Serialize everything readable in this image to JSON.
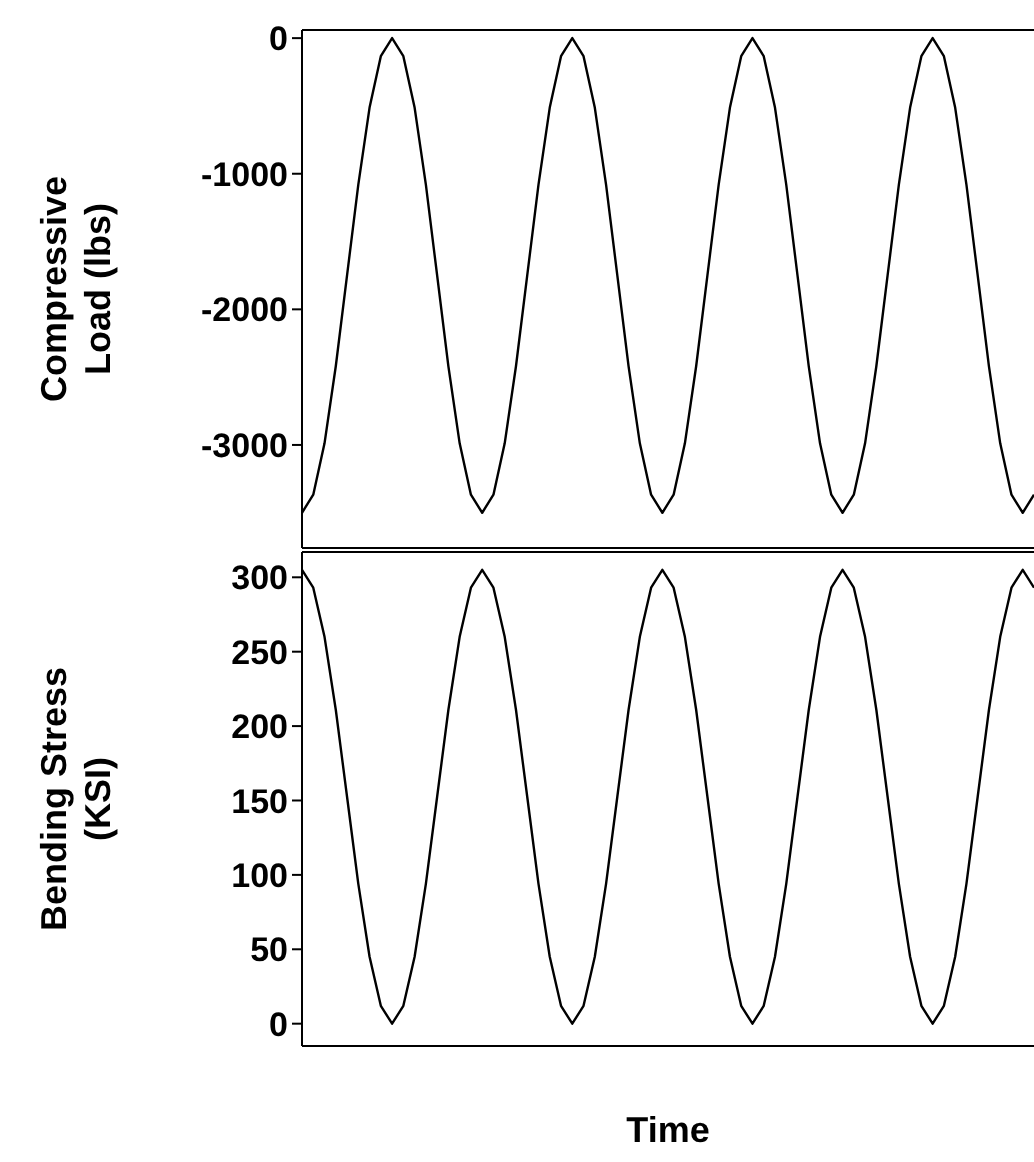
{
  "chart_data": [
    {
      "type": "line",
      "ylabel": "Compressive Load (lbs)",
      "tick_labels": "y",
      "grid": false,
      "legend": false,
      "marker": "none",
      "line_style": "solid",
      "ylim": [
        -3760,
        60
      ],
      "yticks": [
        0,
        -1000,
        -2000,
        -3000
      ],
      "categories": [
        null,
        null,
        null,
        null,
        null,
        null,
        null,
        null,
        null,
        null,
        null,
        null,
        null,
        null,
        null,
        null,
        null,
        null,
        null,
        null,
        null,
        null,
        null,
        null,
        null,
        null,
        null,
        null,
        null,
        null,
        null,
        null,
        null,
        null,
        null,
        null,
        null,
        null,
        null,
        null,
        null,
        null,
        null,
        null,
        null,
        null,
        null,
        null,
        null,
        null,
        null,
        null,
        null,
        null,
        null,
        null,
        null,
        null,
        null,
        null,
        null,
        null,
        null,
        null,
        null,
        null
      ],
      "series": [
        {
          "color": "#000000",
          "values": [
            -3500,
            -3367,
            -2988,
            -2420,
            -1750,
            -1080,
            -512,
            -133,
            0,
            -133,
            -512,
            -1080,
            -1750,
            -2420,
            -2988,
            -3367,
            -3500,
            -3367,
            -2988,
            -2420,
            -1750,
            -1080,
            -512,
            -133,
            0,
            -133,
            -512,
            -1080,
            -1750,
            -2420,
            -2988,
            -3367,
            -3500,
            -3367,
            -2988,
            -2420,
            -1750,
            -1080,
            -512,
            -133,
            0,
            -133,
            -512,
            -1080,
            -1750,
            -2420,
            -2988,
            -3367,
            -3500,
            -3367,
            -2988,
            -2420,
            -1750,
            -1080,
            -512,
            -133,
            0,
            -133,
            -512,
            -1080,
            -1750,
            -2420,
            -2988,
            -3367,
            -3500,
            -3367
          ]
        }
      ]
    },
    {
      "type": "line",
      "ylabel": "Bending Stress (KSI)",
      "xlabel": "Time",
      "tick_labels": "y",
      "grid": false,
      "legend": false,
      "marker": "none",
      "line_style": "solid",
      "ylim": [
        -15,
        317
      ],
      "yticks": [
        0,
        50,
        100,
        150,
        200,
        250,
        300
      ],
      "categories": [
        null,
        null,
        null,
        null,
        null,
        null,
        null,
        null,
        null,
        null,
        null,
        null,
        null,
        null,
        null,
        null,
        null,
        null,
        null,
        null,
        null,
        null,
        null,
        null,
        null,
        null,
        null,
        null,
        null,
        null,
        null,
        null,
        null,
        null,
        null,
        null,
        null,
        null,
        null,
        null,
        null,
        null,
        null,
        null,
        null,
        null,
        null,
        null,
        null,
        null,
        null,
        null,
        null,
        null,
        null,
        null,
        null,
        null,
        null,
        null,
        null,
        null,
        null,
        null,
        null,
        null
      ],
      "series": [
        {
          "color": "#000000",
          "values": [
            305,
            293,
            260,
            211,
            152.5,
            94,
            45,
            12,
            0,
            12,
            45,
            94,
            152.5,
            211,
            260,
            293,
            305,
            293,
            260,
            211,
            152.5,
            94,
            45,
            12,
            0,
            12,
            45,
            94,
            152.5,
            211,
            260,
            293,
            305,
            293,
            260,
            211,
            152.5,
            94,
            45,
            12,
            0,
            12,
            45,
            94,
            152.5,
            211,
            260,
            293,
            305,
            293,
            260,
            211,
            152.5,
            94,
            45,
            12,
            0,
            12,
            45,
            94,
            152.5,
            211,
            260,
            293,
            305,
            293
          ]
        }
      ]
    }
  ]
}
